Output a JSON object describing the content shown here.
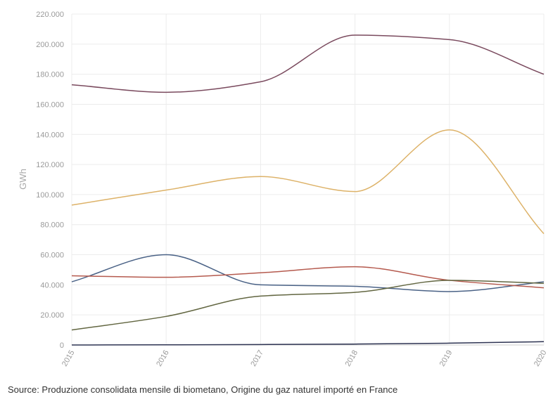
{
  "chart_data": {
    "type": "line",
    "title": "",
    "xlabel": "",
    "ylabel": "GWh",
    "x": [
      "2015",
      "2016",
      "2017",
      "2018",
      "2019",
      "2020"
    ],
    "ylim": [
      0,
      220000
    ],
    "yticks": [
      "0",
      "20.000",
      "40.000",
      "60.000",
      "80.000",
      "100.000",
      "120.000",
      "140.000",
      "160.000",
      "180.000",
      "200.000",
      "220.000"
    ],
    "grid": true,
    "legend": "none",
    "series": [
      {
        "color": "#7a4a5e",
        "values": [
          173000,
          168000,
          175000,
          206000,
          203000,
          180000
        ]
      },
      {
        "color": "#ddb268",
        "values": [
          93000,
          103000,
          112000,
          102000,
          143000,
          74000
        ]
      },
      {
        "color": "#4a6286",
        "values": [
          42000,
          60000,
          40000,
          39000,
          35500,
          42000
        ]
      },
      {
        "color": "#b55a4e",
        "values": [
          46000,
          45000,
          48000,
          52000,
          43000,
          38000
        ]
      },
      {
        "color": "#626641",
        "values": [
          10000,
          19000,
          32500,
          35000,
          43000,
          41000
        ]
      },
      {
        "color": "#2d3352",
        "values": [
          0,
          100,
          300,
          600,
          1200,
          2200
        ]
      }
    ]
  },
  "source": "Source: Produzione consolidata mensile di biometano, Origine du gaz naturel importé en France"
}
